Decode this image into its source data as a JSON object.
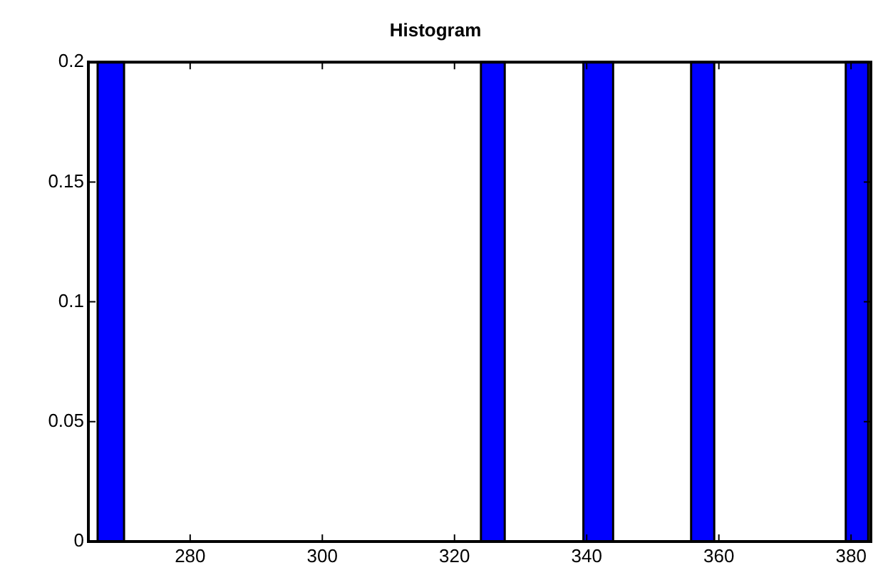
{
  "chart_data": {
    "type": "histogram",
    "title": "Histogram",
    "bins": [
      266,
      270,
      324,
      327.6,
      339.5,
      344,
      355.8,
      359.3,
      379.2,
      382.6
    ],
    "values": [
      0.2,
      0,
      0.2,
      0,
      0.2,
      0,
      0.2,
      0,
      0.2
    ],
    "color": "#0000ff",
    "xlim": [
      264.6,
      383
    ],
    "xticks": [
      280,
      300,
      320,
      340,
      360,
      380
    ],
    "ylim": [
      0,
      0.2
    ],
    "yticks": [
      0,
      0.05,
      0.1,
      0.15,
      0.2
    ],
    "grid": false
  }
}
